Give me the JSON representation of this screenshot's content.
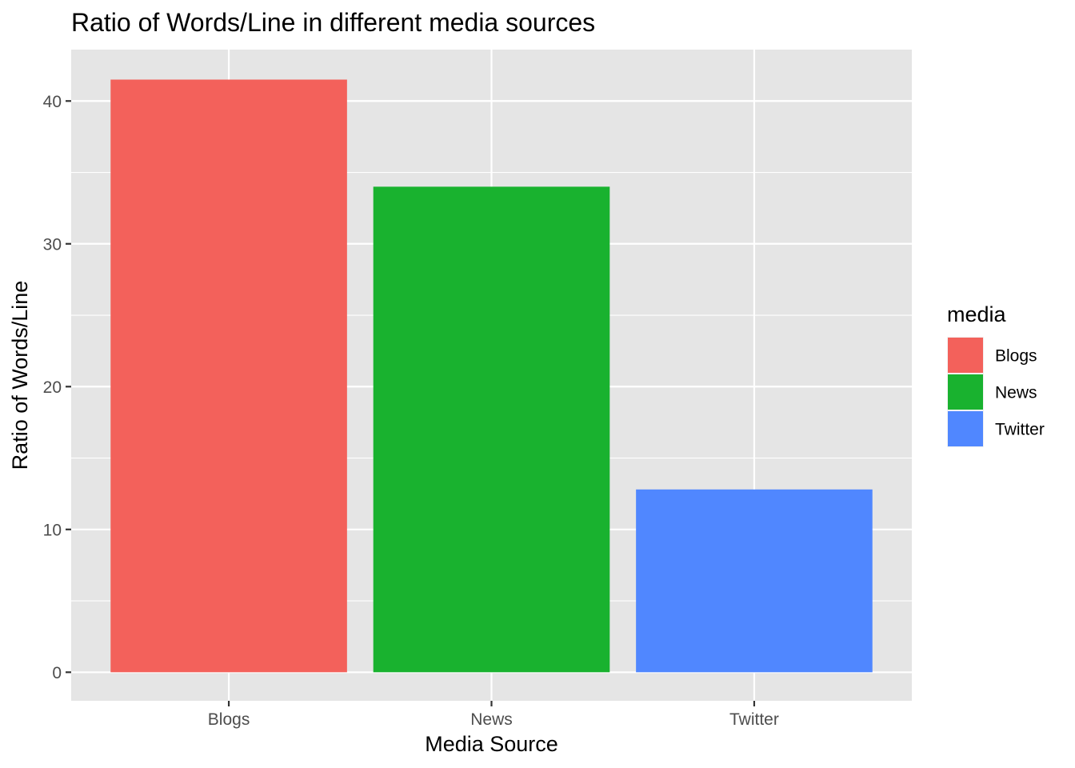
{
  "chart_data": {
    "type": "bar",
    "title": "Ratio of Words/Line in different media sources",
    "xlabel": "Media Source",
    "ylabel": "Ratio of Words/Line",
    "categories": [
      "Blogs",
      "News",
      "Twitter"
    ],
    "values": [
      41.5,
      34.0,
      12.8
    ],
    "ylim": [
      -2.0,
      43.6
    ],
    "y_ticks": [
      0,
      10,
      20,
      30,
      40
    ],
    "y_tick_labels": [
      "0",
      "10",
      "20",
      "30",
      "40"
    ],
    "y_minor_ticks": [
      5,
      15,
      25,
      35
    ],
    "colors": [
      "#F3615B",
      "#19B22F",
      "#5087FF"
    ],
    "grid": true,
    "panel_background": "#E5E5E5",
    "gridline_color": "#FFFFFF",
    "legend": {
      "title": "media",
      "placement": "right",
      "entries": [
        "Blogs",
        "News",
        "Twitter"
      ]
    }
  }
}
